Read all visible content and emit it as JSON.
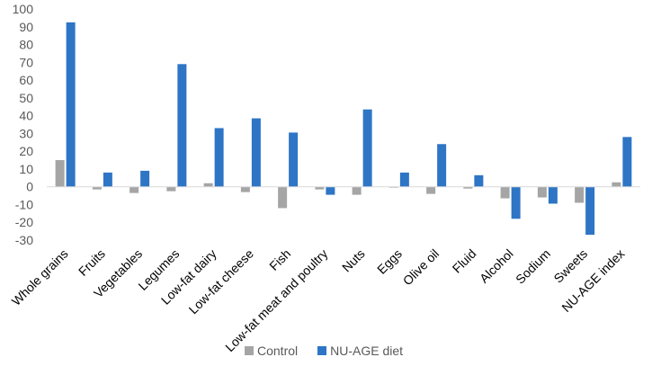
{
  "chart_data": {
    "type": "bar",
    "title": "",
    "xlabel": "",
    "ylabel": "",
    "ylim": [
      -30,
      100
    ],
    "yticks": [
      100,
      90,
      80,
      70,
      60,
      50,
      40,
      30,
      20,
      10,
      0,
      -10,
      -20,
      -30
    ],
    "grid": false,
    "legend_position": "bottom",
    "categories": [
      "Whole grains",
      "Fruits",
      "Vegetables",
      "Legumes",
      "Low-fat dairy",
      "Low-fat cheese",
      "Fish",
      "Low-fat meat and poultry",
      "Nuts",
      "Eggs",
      "Olive oil",
      "Fluid",
      "Alcohol",
      "Sodium",
      "Sweets",
      "NU-AGE index"
    ],
    "series": [
      {
        "name": "Control",
        "color": "#a5a5a5",
        "values": [
          15,
          -1.5,
          -3.5,
          -2.5,
          2,
          -3,
          -12,
          -1.5,
          -4.5,
          -0.5,
          -4,
          -1,
          -6.5,
          -6,
          -9,
          2.5
        ]
      },
      {
        "name": "NU-AGE diet",
        "color": "#2e75c5",
        "values": [
          92.5,
          8,
          9,
          69,
          33,
          38.5,
          30.5,
          -4.5,
          43.5,
          8,
          24,
          6.5,
          -18,
          -9.5,
          -27,
          28
        ]
      }
    ]
  }
}
